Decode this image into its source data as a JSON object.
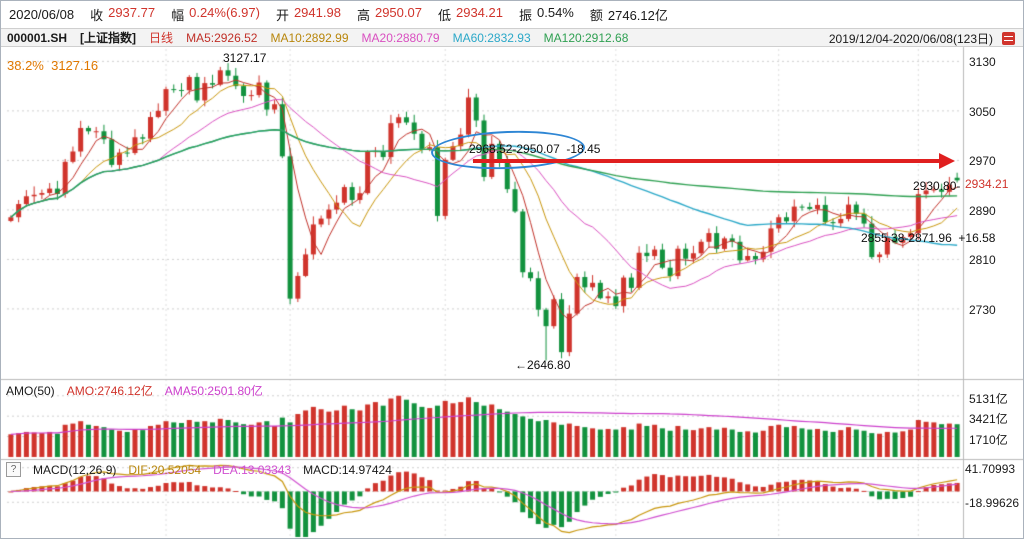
{
  "topbar": {
    "date": "2020/06/08",
    "close_label": "收",
    "close_value": "2937.77",
    "change_label": "幅",
    "change_value": "0.24%(6.97)",
    "open_label": "开",
    "open_value": "2941.98",
    "high_label": "高",
    "high_value": "2950.07",
    "low_label": "低",
    "low_value": "2934.21",
    "amplitude_label": "振",
    "amplitude_value": "0.54%",
    "amount_label": "额",
    "amount_value": "2746.12亿"
  },
  "info_bar": {
    "symbol": "000001.SH",
    "name": "[上证指数]",
    "period": "日线",
    "ma5": "MA5:2926.52",
    "ma10": "MA10:2892.99",
    "ma20": "MA20:2880.79",
    "ma60": "MA60:2832.93",
    "ma120": "MA120:2912.68",
    "range": "2019/12/04-2020/06/08(123日)"
  },
  "main_axis": {
    "ticks": [
      "3130",
      "3050",
      "2970",
      "2890",
      "2810",
      "2730"
    ],
    "price_marker": "2934.21"
  },
  "annotations": {
    "fib": "38.2%  3127.16",
    "peak": "3127.17",
    "resistance": "2968.52-2950.07  -18.45",
    "prev_close": "2930.80-",
    "gap": "2855.38-2871.96  +16.58",
    "low": "←2646.80"
  },
  "volume_pane": {
    "indicator": "AMO(50)",
    "amo": "AMO:2746.12亿",
    "ama50": "AMA50:2501.80亿",
    "axis": [
      "5131亿",
      "3421亿",
      "1710亿"
    ]
  },
  "macd_pane": {
    "help": "?",
    "indicator": "MACD(12,26,9)",
    "dif": "DIF:20.52054",
    "dea": "DEA:13.03343",
    "macd": "MACD:14.97424",
    "axis_top": "41.70993",
    "axis_bottom": "-18.99626"
  },
  "colors": {
    "up": "#d0342c",
    "down": "#12923e",
    "ma5": "#c03028",
    "ma10": "#c8960c",
    "ma20": "#d94fc0",
    "ma60": "#2ba8c8",
    "ma120": "#2fa052",
    "ama50": "#cc3fcc",
    "dif": "#c8960c",
    "dea": "#d050d0",
    "arrow": "#e01f1f",
    "ellipse": "#2e86d4",
    "fib": "#e07800",
    "grid": "#cfcfcf",
    "month_grid": "#dedede",
    "separator": "#b8b8b8"
  },
  "chart_data": {
    "type": "candlestick",
    "title": "000001.SH 上证指数 日线",
    "x_range": "2019/12/04-2020/06/08",
    "n_days": 123,
    "ylim_main": [
      2620,
      3150
    ],
    "yticks_main": [
      3130,
      3050,
      2970,
      2890,
      2810,
      2730
    ],
    "volume_ticks": [
      5131,
      3421,
      1710
    ],
    "macd_axis": [
      41.70993,
      -18.99626
    ],
    "ma_periods": [
      5,
      10,
      20,
      60,
      120
    ],
    "ama_period": 50,
    "macd_params": [
      12,
      26,
      9
    ],
    "month_start_indices": [
      20,
      36,
      56,
      78,
      99,
      117
    ],
    "closes": [
      2878.12,
      2899.47,
      2912.01,
      2914.48,
      2917.32,
      2924.42,
      2915.7,
      2967.68,
      2984.39,
      3022.42,
      3017.04,
      3017.07,
      3004.06,
      2962.75,
      2982.68,
      2981.88,
      3007.35,
      3005.04,
      3040.02,
      3050.12,
      3085.2,
      3083.79,
      3083.41,
      3104.8,
      3066.89,
      3094.88,
      3092.29,
      3115.57,
      3106.82,
      3090.04,
      3074.08,
      3075.5,
      3095.79,
      3052.14,
      3060.75,
      2976.53,
      2746.61,
      2783.29,
      2818.09,
      2866.51,
      2875.96,
      2890.49,
      2901.67,
      2926.9,
      2906.07,
      2917.01,
      2983.62,
      2984.97,
      2975.4,
      3030.15,
      3039.67,
      3031.23,
      3013.05,
      2987.93,
      2991.33,
      2880.3,
      2970.93,
      2992.9,
      3011.67,
      3071.68,
      3034.51,
      2943.29,
      2996.76,
      2968.52,
      2923.49,
      2887.43,
      2789.25,
      2779.64,
      2728.76,
      2702.13,
      2745.62,
      2660.17,
      2722.44,
      2781.59,
      2764.91,
      2772.2,
      2747.21,
      2750.3,
      2734.52,
      2780.64,
      2763.99,
      2820.76,
      2815.37,
      2825.9,
      2796.63,
      2783.05,
      2827.28,
      2811.17,
      2819.94,
      2838.49,
      2852.55,
      2827.01,
      2843.98,
      2838.5,
      2808.53,
      2815.49,
      2810.02,
      2822.44,
      2860.08,
      2878.14,
      2871.52,
      2895.34,
      2894.8,
      2891.56,
      2898.05,
      2870.34,
      2868.46,
      2875.42,
      2898.58,
      2883.74,
      2867.92,
      2813.77,
      2817.97,
      2846.55,
      2836.8,
      2846.22,
      2852.35,
      2915.43,
      2921.4,
      2923.37,
      2919.25,
      2930.8,
      2937.77
    ],
    "amounts_yi": [
      1900,
      2000,
      2100,
      2050,
      2000,
      2100,
      1950,
      2700,
      2800,
      3000,
      2700,
      2600,
      2500,
      2300,
      2200,
      2100,
      2300,
      2250,
      2600,
      2700,
      3000,
      2900,
      2850,
      3100,
      2950,
      3000,
      2900,
      3200,
      3100,
      2900,
      2750,
      2700,
      2900,
      3000,
      2600,
      3300,
      2900,
      3600,
      3900,
      4200,
      4000,
      3800,
      3900,
      4300,
      4000,
      3900,
      4400,
      4600,
      4300,
      4900,
      5131,
      4800,
      4500,
      4200,
      4100,
      4300,
      4700,
      4500,
      4600,
      5000,
      4600,
      4300,
      4400,
      4000,
      3800,
      3600,
      3400,
      3200,
      3000,
      3100,
      2900,
      2700,
      2800,
      2600,
      2500,
      2400,
      2300,
      2350,
      2300,
      2500,
      2300,
      2800,
      2600,
      2700,
      2400,
      2200,
      2600,
      2300,
      2250,
      2400,
      2500,
      2300,
      2450,
      2300,
      2100,
      2150,
      2050,
      2200,
      2600,
      2700,
      2500,
      2600,
      2400,
      2300,
      2350,
      2200,
      2100,
      2250,
      2500,
      2300,
      2200,
      2000,
      1950,
      2100,
      2050,
      2150,
      2300,
      3100,
      2950,
      2900,
      2750,
      2800,
      2746
    ],
    "key_points": {
      "peak": {
        "index": 28,
        "high": 3127.17
      },
      "trough": {
        "index": 69,
        "low": 2646.8
      },
      "last": {
        "open": 2941.98,
        "high": 2950.07,
        "low": 2934.21,
        "close": 2937.77
      }
    }
  }
}
